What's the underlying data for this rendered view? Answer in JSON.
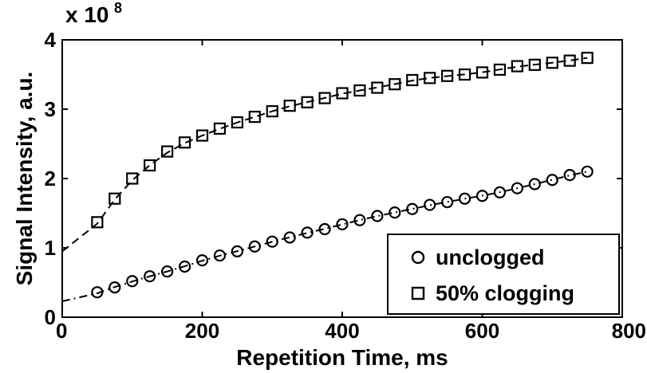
{
  "chart_data": {
    "type": "scatter",
    "xlabel": "Repetition Time, ms",
    "ylabel": "Signal Intensity, a.u.",
    "y_multiplier": "x 10",
    "y_multiplier_exp": "8",
    "xlim": [
      0,
      800
    ],
    "ylim": [
      0,
      4
    ],
    "x_ticks": [
      "0",
      "200",
      "400",
      "600",
      "800"
    ],
    "y_ticks": [
      "0",
      "1",
      "2",
      "3",
      "4"
    ],
    "grid": false,
    "legend_position": "bottom-right",
    "series": [
      {
        "name": "unclogged",
        "marker": "circle",
        "x": [
          50,
          75,
          100,
          125,
          150,
          175,
          200,
          225,
          250,
          275,
          300,
          325,
          350,
          375,
          400,
          425,
          450,
          475,
          500,
          525,
          550,
          575,
          600,
          625,
          650,
          675,
          700,
          725,
          750
        ],
        "y": [
          0.36,
          0.43,
          0.52,
          0.59,
          0.66,
          0.73,
          0.82,
          0.89,
          0.95,
          1.02,
          1.09,
          1.15,
          1.22,
          1.27,
          1.34,
          1.4,
          1.46,
          1.51,
          1.56,
          1.62,
          1.66,
          1.71,
          1.75,
          1.8,
          1.86,
          1.92,
          1.98,
          2.05,
          2.1
        ],
        "fit_line": "dash-dot"
      },
      {
        "name": "50% clogging",
        "marker": "square",
        "x": [
          50,
          75,
          100,
          125,
          150,
          175,
          200,
          225,
          250,
          275,
          300,
          325,
          350,
          375,
          400,
          425,
          450,
          475,
          500,
          525,
          550,
          575,
          600,
          625,
          650,
          675,
          700,
          725,
          750
        ],
        "y": [
          1.37,
          1.71,
          2.0,
          2.19,
          2.39,
          2.52,
          2.62,
          2.72,
          2.81,
          2.89,
          2.97,
          3.05,
          3.1,
          3.16,
          3.23,
          3.27,
          3.31,
          3.36,
          3.42,
          3.45,
          3.48,
          3.5,
          3.53,
          3.57,
          3.62,
          3.64,
          3.67,
          3.7,
          3.74
        ],
        "fit_line": "dashed"
      }
    ]
  }
}
